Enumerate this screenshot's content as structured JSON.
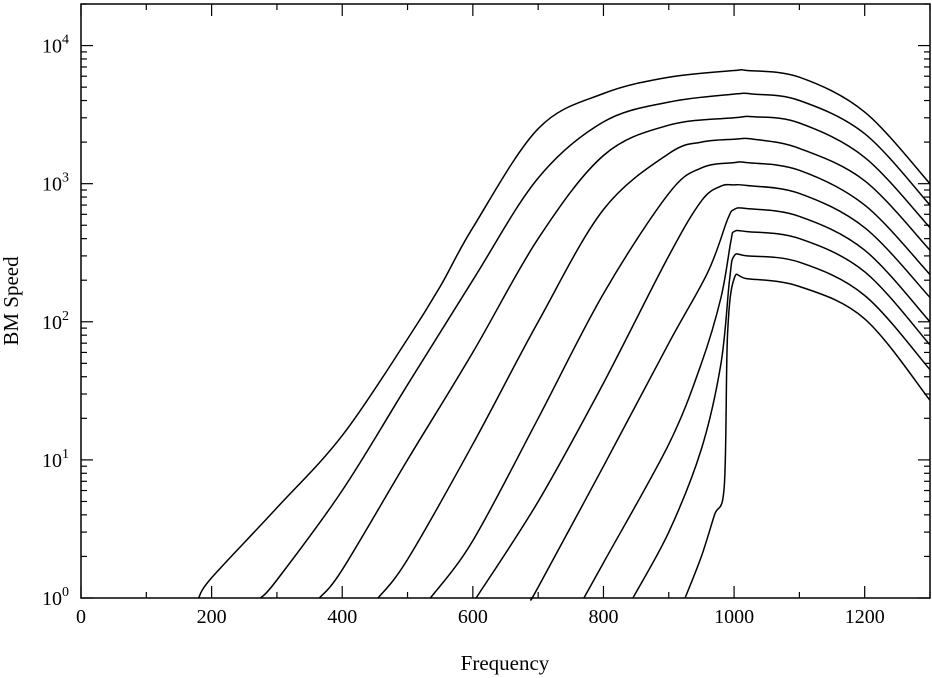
{
  "chart_data": {
    "type": "line",
    "xlabel": "Frequency",
    "ylabel": "BM Speed",
    "xlim": [
      0,
      1300
    ],
    "ylim": [
      1,
      20000
    ],
    "yscale": "log",
    "x_major_ticks": [
      0,
      200,
      400,
      600,
      800,
      1000,
      1200
    ],
    "x_tick_labels": [
      "0",
      "200",
      "400",
      "600",
      "800",
      "1000",
      "1200"
    ],
    "x_minor_step": 100,
    "y_major_ticks": [
      1,
      10,
      100,
      1000,
      10000
    ],
    "y_tick_labels": [
      {
        "base": "10",
        "exp": "0"
      },
      {
        "base": "10",
        "exp": "1"
      },
      {
        "base": "10",
        "exp": "2"
      },
      {
        "base": "10",
        "exp": "3"
      },
      {
        "base": "10",
        "exp": "4"
      }
    ],
    "grid": false,
    "legend": "none",
    "series": [
      {
        "x": [
          180,
          200,
          300,
          400,
          500,
          550,
          600,
          700,
          800,
          900,
          1000,
          1020,
          1100,
          1200,
          1300
        ],
        "y": [
          1,
          1.4,
          4.5,
          15,
          75,
          180,
          480,
          2500,
          4500,
          5900,
          6600,
          6600,
          5900,
          3300,
          1000
        ]
      },
      {
        "x": [
          275,
          300,
          400,
          500,
          600,
          700,
          800,
          900,
          1000,
          1030,
          1100,
          1200,
          1300
        ],
        "y": [
          1,
          1.35,
          6,
          35,
          200,
          1100,
          2800,
          3900,
          4450,
          4450,
          4000,
          2300,
          700
        ]
      },
      {
        "x": [
          365,
          400,
          500,
          600,
          700,
          800,
          900,
          1000,
          1030,
          1100,
          1200,
          1300
        ],
        "y": [
          1,
          1.6,
          10,
          60,
          400,
          1600,
          2650,
          3000,
          3050,
          2750,
          1550,
          480
        ]
      },
      {
        "x": [
          455,
          500,
          600,
          700,
          800,
          900,
          950,
          1000,
          1030,
          1100,
          1200,
          1300
        ],
        "y": [
          1,
          1.9,
          13,
          100,
          650,
          1650,
          2000,
          2100,
          2100,
          1800,
          1050,
          330
        ]
      },
      {
        "x": [
          535,
          600,
          700,
          800,
          900,
          950,
          1000,
          1020,
          1100,
          1200,
          1300
        ],
        "y": [
          1,
          2.6,
          20,
          160,
          850,
          1300,
          1420,
          1420,
          1250,
          700,
          220
        ]
      },
      {
        "x": [
          605,
          700,
          800,
          900,
          950,
          980,
          1000,
          1020,
          1100,
          1200,
          1300
        ],
        "y": [
          1,
          5,
          36,
          300,
          750,
          960,
          980,
          970,
          850,
          480,
          150
        ]
      },
      {
        "x": [
          690,
          700,
          800,
          900,
          960,
          990,
          1000,
          1020,
          1100,
          1200,
          1300
        ],
        "y": [
          1,
          1.2,
          9,
          70,
          230,
          550,
          650,
          660,
          580,
          330,
          100
        ]
      },
      {
        "x": [
          770,
          800,
          900,
          950,
          980,
          995,
          1000,
          1020,
          1100,
          1200,
          1300
        ],
        "y": [
          1,
          1.8,
          13,
          50,
          150,
          380,
          450,
          450,
          400,
          230,
          68
        ]
      },
      {
        "x": [
          845,
          900,
          950,
          980,
          993,
          1000,
          1020,
          1100,
          1200,
          1300
        ],
        "y": [
          1,
          3,
          12,
          50,
          200,
          300,
          300,
          270,
          155,
          45
        ]
      },
      {
        "x": [
          925,
          950,
          970,
          985,
          990,
          1000,
          1020,
          1100,
          1200,
          1300
        ],
        "y": [
          1,
          2,
          4,
          6.5,
          80,
          205,
          205,
          180,
          105,
          27
        ]
      }
    ]
  }
}
